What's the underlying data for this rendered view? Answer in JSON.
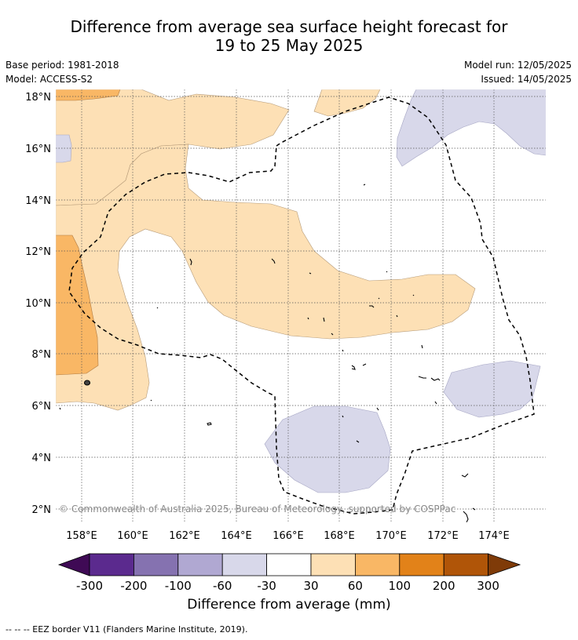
{
  "title_line1": "Difference from average sea surface height forecast for",
  "title_line2": "19 to 25 May 2025",
  "base_period": "Base period: 1981-2018",
  "model": "Model: ACCESS-S2",
  "model_run": "Model run: 12/05/2025",
  "issued": "Issued: 14/05/2025",
  "copyright": "© Commonwealth of Australia 2025, Bureau of Meteorology, supported by COSPPac",
  "colorbar_label": "Difference from average (mm)",
  "footnote": "--  --  -- EEZ border V11 (Flanders Marine Institute, 2019).",
  "lat_labels": [
    "18°N",
    "16°N",
    "14°N",
    "12°N",
    "10°N",
    "8°N",
    "6°N",
    "4°N",
    "2°N"
  ],
  "lon_labels": [
    "158°E",
    "160°E",
    "162°E",
    "164°E",
    "166°E",
    "168°E",
    "170°E",
    "172°E",
    "174°E"
  ],
  "colorbar": {
    "ticks": [
      "-300",
      "-200",
      "-100",
      "-60",
      "-30",
      "30",
      "60",
      "100",
      "200",
      "300"
    ],
    "colors": [
      "#3f0a55",
      "#5b2a8e",
      "#8572b0",
      "#b0a8d2",
      "#d8d8ea",
      "#ffffff",
      "#fde0b5",
      "#f9b765",
      "#e28219",
      "#b05508",
      "#7f3b08"
    ]
  },
  "legend_line": "dashed black line = EEZ border"
}
